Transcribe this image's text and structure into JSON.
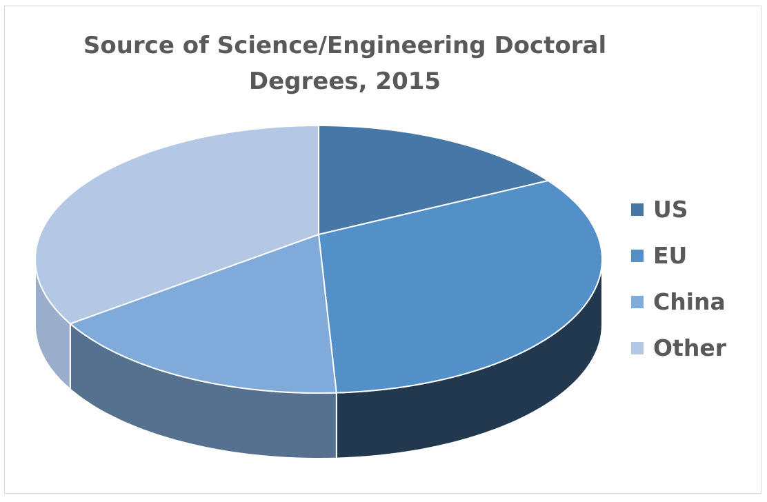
{
  "chart_data": {
    "type": "pie",
    "style": "3d",
    "title": "Source of Science/Engineering Doctoral Degrees, 2015",
    "title_lines": [
      "Source of Science/Engineering Doctoral",
      "Degrees, 2015"
    ],
    "categories": [
      "US",
      "EU",
      "China",
      "Other"
    ],
    "values": [
      15,
      34,
      18,
      33
    ],
    "unit": "approx. percent share (estimated)",
    "colors": [
      "#4677a6",
      "#5490c8",
      "#7faad9",
      "#b4c8e5"
    ],
    "side_colors": [
      "#2f5072",
      "#22384f",
      "#56708f",
      "#9aaecb"
    ],
    "legend_position": "right",
    "data_labels": false
  }
}
